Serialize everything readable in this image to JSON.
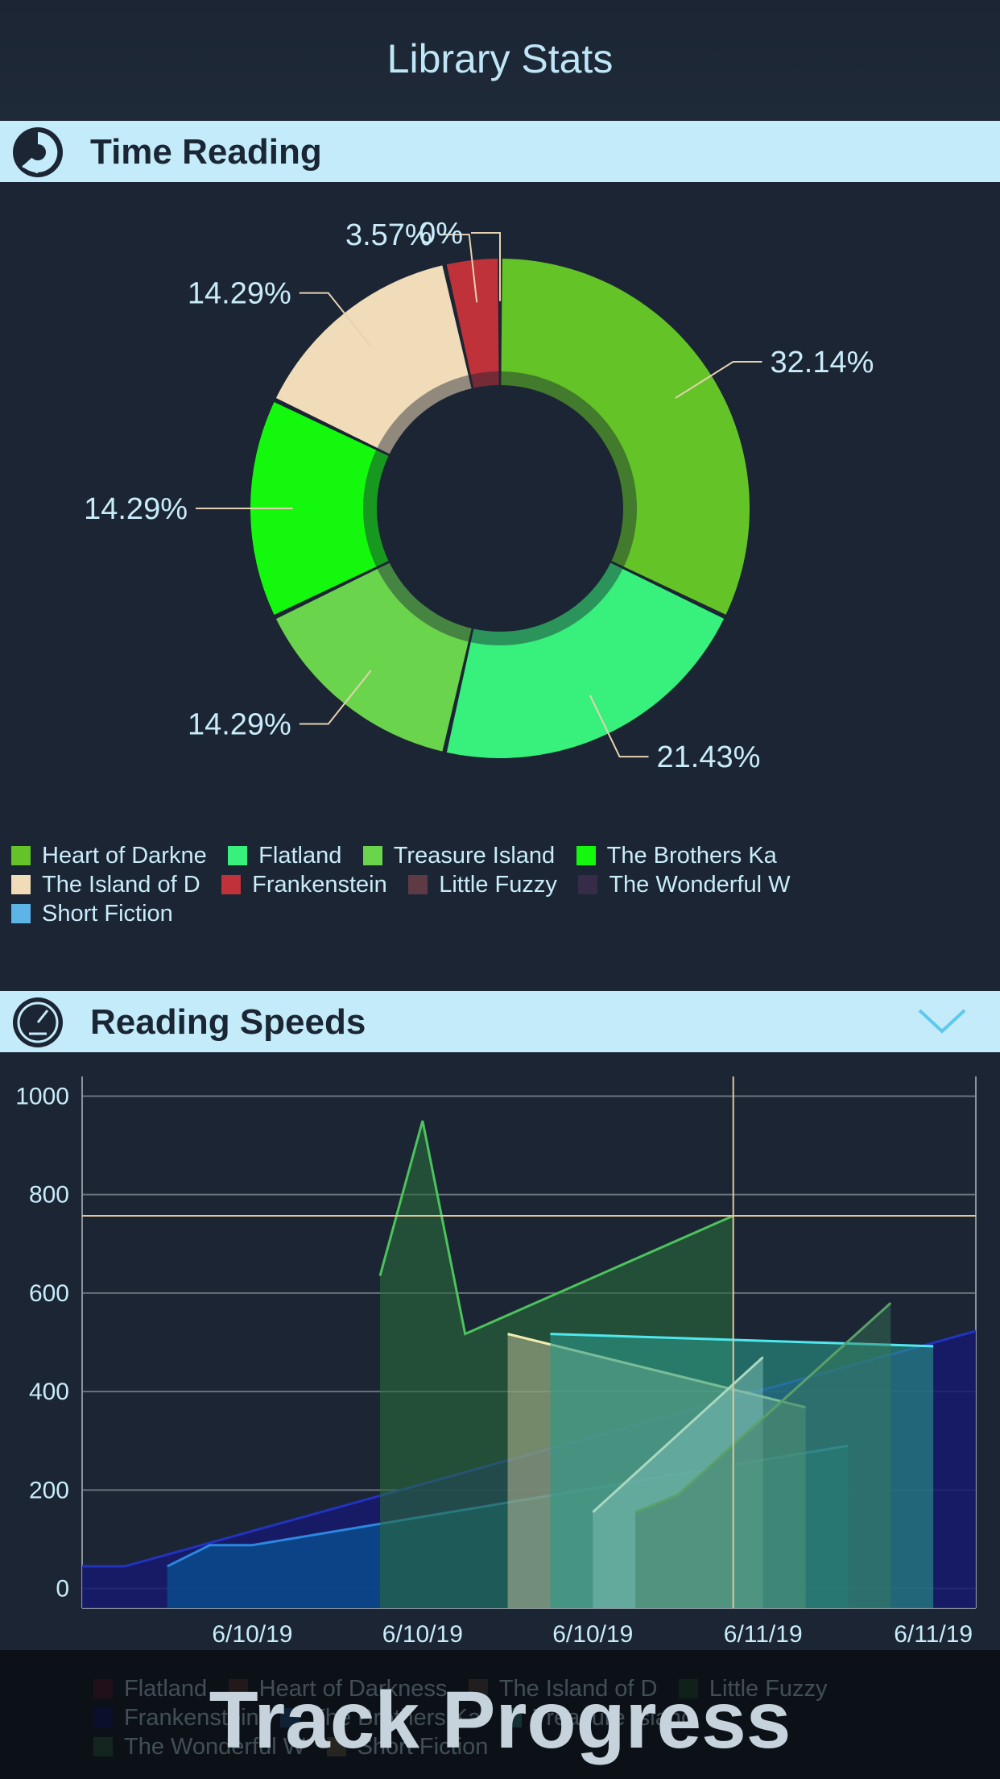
{
  "header": {
    "title": "Library Stats"
  },
  "time_reading": {
    "title": "Time Reading",
    "legend": [
      {
        "label": "Heart of Darkne",
        "color": "#63c327"
      },
      {
        "label": "Flatland",
        "color": "#38f07c"
      },
      {
        "label": "Treasure Island",
        "color": "#6ad44c"
      },
      {
        "label": "The Brothers Ka",
        "color": "#14f80e"
      },
      {
        "label": "The Island of D",
        "color": "#f0dcb8"
      },
      {
        "label": "Frankenstein",
        "color": "#bf3239"
      },
      {
        "label": "Little Fuzzy",
        "color": "#5e3a44"
      },
      {
        "label": "The Wonderful W",
        "color": "#362c4a"
      },
      {
        "label": "Short Fiction",
        "color": "#5cb5e6"
      }
    ]
  },
  "reading_speeds": {
    "title": "Reading Speeds"
  },
  "footer": {
    "banner": "Track Progress",
    "legend": [
      {
        "label": "Flatland",
        "color": "#5a1020"
      },
      {
        "label": "Heart of Darkness",
        "color": "#5a3022"
      },
      {
        "label": "The Island of D",
        "color": "#5a4038"
      },
      {
        "label": "Little Fuzzy",
        "color": "#184a20"
      },
      {
        "label": "Frankenstein",
        "color": "#0a0a60"
      },
      {
        "label": "The Brothers Ka",
        "color": "#1a4a80"
      },
      {
        "label": "Treasure Island",
        "color": "#2a8078"
      },
      {
        "label": "The Wonderful W",
        "color": "#2a5a38"
      },
      {
        "label": "Short Fiction",
        "color": "#6a5a40"
      }
    ]
  },
  "chart_data": [
    {
      "type": "pie",
      "title": "Time Reading",
      "labels": [
        "Heart of Darkne",
        "Flatland",
        "Treasure Island",
        "The Brothers Ka",
        "The Island of D",
        "Frankenstein",
        "Little Fuzzy"
      ],
      "values": [
        32.14,
        21.43,
        14.29,
        14.29,
        14.29,
        3.57,
        0
      ],
      "value_labels": [
        "32.14%",
        "21.43%",
        "14.29%",
        "14.29%",
        "14.29%",
        "3.57%",
        "0%"
      ],
      "colors": [
        "#63c327",
        "#38f07c",
        "#6ad44c",
        "#14f80e",
        "#f0dcb8",
        "#bf3239",
        "#5e3a44"
      ]
    },
    {
      "type": "area",
      "title": "Reading Speeds",
      "ylim": [
        -40,
        1040
      ],
      "yticks": [
        0,
        200,
        400,
        600,
        800,
        1000
      ],
      "xlim": [
        0,
        21
      ],
      "x_ticks": [
        {
          "x": 4,
          "label": "6/10/19"
        },
        {
          "x": 8,
          "label": "6/10/19"
        },
        {
          "x": 12,
          "label": "6/10/19"
        },
        {
          "x": 16,
          "label": "6/11/19"
        },
        {
          "x": 20,
          "label": "6/11/19"
        }
      ],
      "crosshair": {
        "x": 15.3,
        "y": 757
      },
      "series": [
        {
          "name": "Frankenstein",
          "fill": "#16196e",
          "fillOpacity": 0.85,
          "stroke": "#2233c0",
          "points": [
            [
              0,
              45
            ],
            [
              1,
              45
            ],
            [
              21,
              523
            ]
          ]
        },
        {
          "name": "The Brothers Ka",
          "fill": "#0b4a8c",
          "fillOpacity": 0.85,
          "stroke": "#2a88e0",
          "points": [
            [
              2,
              45
            ],
            [
              3,
              88
            ],
            [
              4,
              88
            ],
            [
              18,
              290
            ]
          ]
        },
        {
          "name": "Little Fuzzy",
          "fill": "#2a6a3a",
          "fillOpacity": 0.6,
          "stroke": "#4cc35c",
          "points": [
            [
              7,
              635
            ],
            [
              8,
              950
            ],
            [
              9,
              517
            ],
            [
              15.3,
              757
            ]
          ]
        },
        {
          "name": "The Island of D",
          "fill": "#b8b896",
          "fillOpacity": 0.55,
          "stroke": "#f2eeb0",
          "points": [
            [
              10,
              517
            ],
            [
              17,
              368
            ]
          ]
        },
        {
          "name": "Flatland",
          "fill": "#2a9a88",
          "fillOpacity": 0.6,
          "stroke": "#4ee8ee",
          "points": [
            [
              11,
              517
            ],
            [
              20,
              492
            ]
          ]
        },
        {
          "name": "Treasure Island",
          "fill": "#80c0b8",
          "fillOpacity": 0.5,
          "stroke": "#a8d8c0",
          "points": [
            [
              12,
              155
            ],
            [
              16,
              470
            ]
          ]
        },
        {
          "name": "The Wonderful W",
          "fill": "#3a7a5a",
          "fillOpacity": 0.45,
          "stroke": "#5aa06a",
          "points": [
            [
              13,
              155
            ],
            [
              14,
              190
            ],
            [
              19,
              580
            ]
          ]
        }
      ]
    }
  ]
}
